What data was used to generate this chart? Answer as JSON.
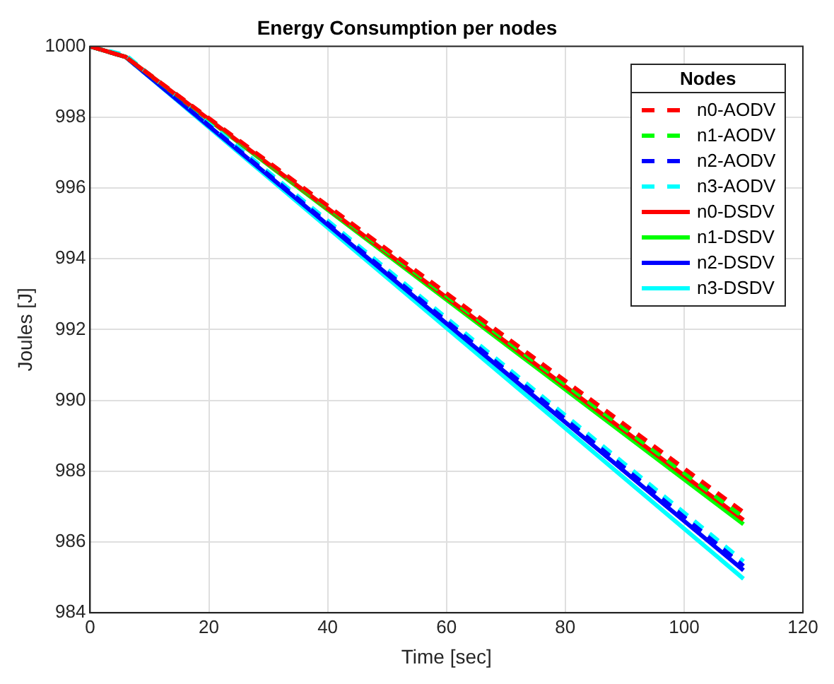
{
  "chart_data": {
    "type": "line",
    "title": "Energy Consumption per nodes",
    "xlabel": "Time [sec]",
    "ylabel": "Joules [J]",
    "legend_title": "Nodes",
    "legend": "top right",
    "grid": true,
    "marker": "none",
    "xlim": [
      0,
      120
    ],
    "xticks": [
      0,
      20,
      40,
      60,
      80,
      100,
      120
    ],
    "ylim": [
      984,
      1000
    ],
    "yticks": [
      984,
      986,
      988,
      990,
      992,
      994,
      996,
      998,
      1000
    ],
    "x": [
      0,
      6,
      110
    ],
    "series": [
      {
        "name": "n0-AODV",
        "color": "#ff0000",
        "line_style": "dashed",
        "values": [
          1000,
          999.7,
          986.84
        ]
      },
      {
        "name": "n1-AODV",
        "color": "#00ff00",
        "line_style": "dashed",
        "values": [
          1000,
          999.7,
          986.7
        ]
      },
      {
        "name": "n2-AODV",
        "color": "#0000ff",
        "line_style": "dashed",
        "values": [
          1000,
          999.7,
          985.32
        ]
      },
      {
        "name": "n3-AODV",
        "color": "#00ffff",
        "line_style": "dashed",
        "values": [
          1000,
          999.75,
          985.45
        ]
      },
      {
        "name": "n0-DSDV",
        "color": "#ff0000",
        "line_style": "solid",
        "values": [
          1000,
          999.7,
          986.62
        ]
      },
      {
        "name": "n1-DSDV",
        "color": "#00ff00",
        "line_style": "solid",
        "values": [
          1000,
          999.7,
          986.5
        ]
      },
      {
        "name": "n2-DSDV",
        "color": "#0000ff",
        "line_style": "solid",
        "values": [
          1000,
          999.7,
          985.2
        ]
      },
      {
        "name": "n3-DSDV",
        "color": "#00ffff",
        "line_style": "solid",
        "values": [
          1000,
          999.7,
          984.96
        ]
      }
    ]
  }
}
